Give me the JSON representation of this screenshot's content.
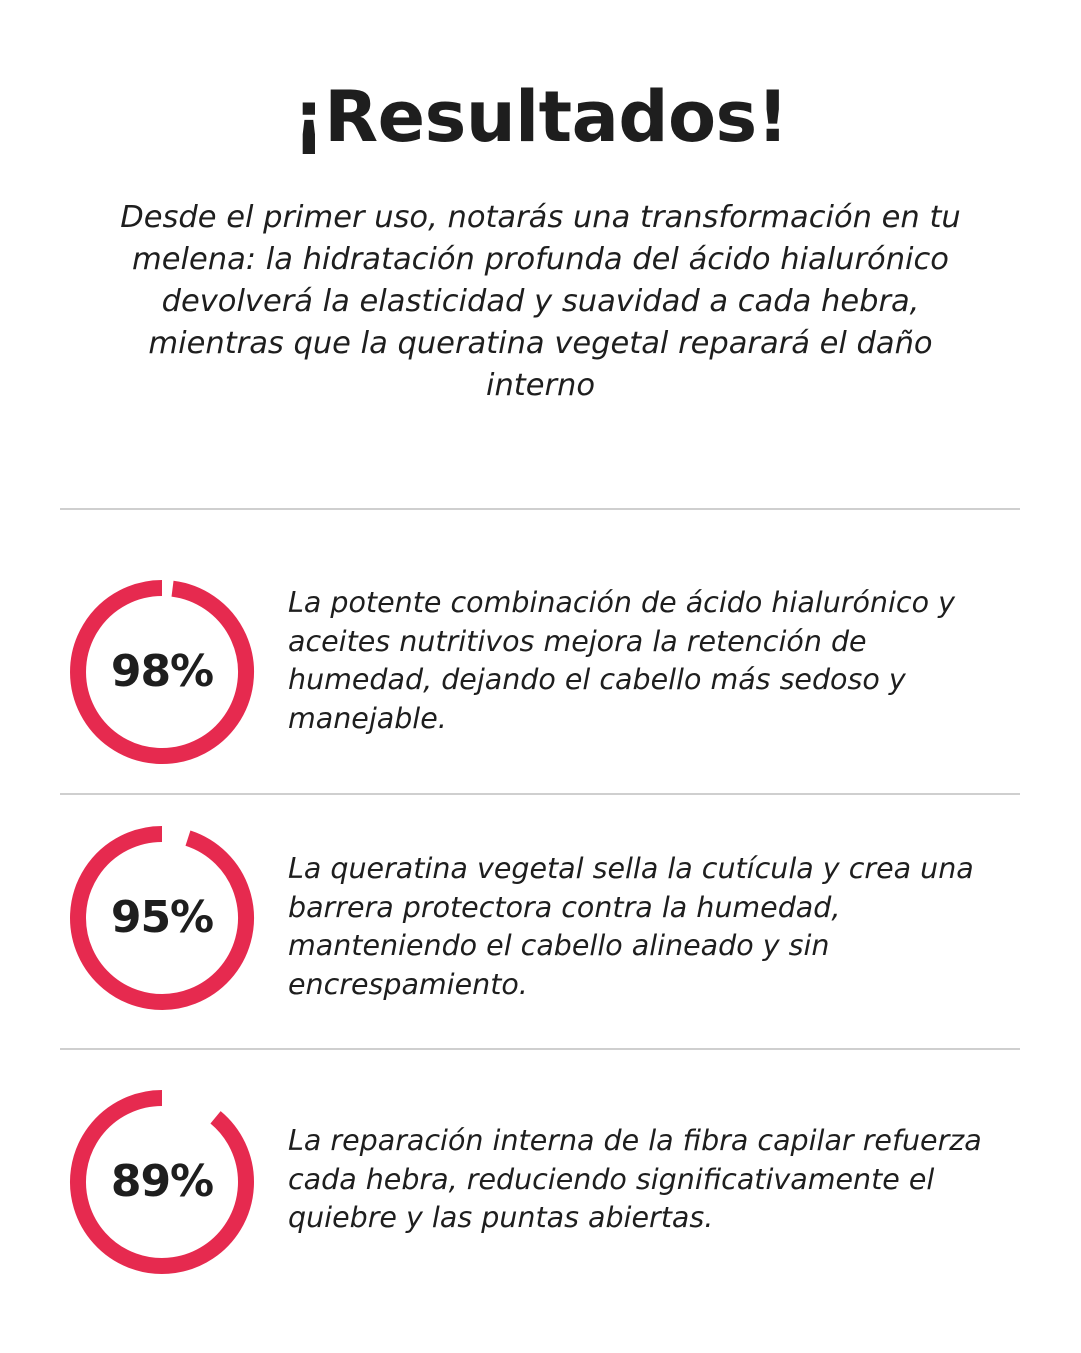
{
  "title": "¡Resultados!",
  "intro": "Desde el primer uso, notarás una transformación en tu melena: la hidratación profunda del ácido hialurónico devolverá la elasticidad y suavidad a cada hebra, mientras que la queratina vegetal reparará el daño interno",
  "accent_color": "#e62a4f",
  "stats": [
    {
      "percent_label": "98%",
      "value": 98,
      "text": "La potente combinación de ácido hialurónico y aceites nutritivos mejora la retención de humedad, dejando el cabello más sedoso y manejable."
    },
    {
      "percent_label": "95%",
      "value": 95,
      "text": "La queratina vegetal sella la cutícula y crea una barrera protectora contra la humedad, manteniendo el cabello alineado y sin encrespamiento."
    },
    {
      "percent_label": "89%",
      "value": 89,
      "text": "La reparación interna de la fibra capilar refuerza cada hebra, reduciendo significativamente el quiebre y las puntas abiertas."
    }
  ]
}
